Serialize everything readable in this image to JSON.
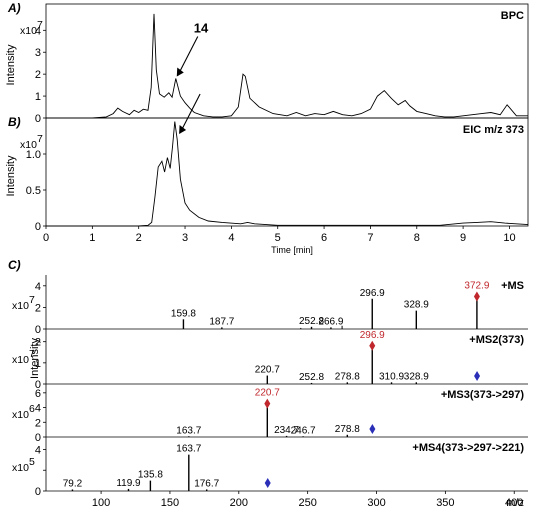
{
  "chart_data": [
    {
      "type": "line",
      "panel_label": "A)",
      "trace_label": "BPC",
      "exponent_label": "x10 7",
      "ylabel": "Intensity",
      "yticks": [
        0,
        1,
        2,
        3,
        4
      ],
      "ylim": [
        0,
        5.2
      ],
      "xlim": [
        0,
        10.4
      ],
      "annotation": "14",
      "annotation_points_to": [
        2.8,
        1.8
      ],
      "x": [
        0,
        1.0,
        1.3,
        1.45,
        1.55,
        1.65,
        1.8,
        1.9,
        2.0,
        2.1,
        2.2,
        2.27,
        2.33,
        2.38,
        2.45,
        2.55,
        2.65,
        2.72,
        2.8,
        2.9,
        3.0,
        3.1,
        3.2,
        3.4,
        3.6,
        3.8,
        4.0,
        4.15,
        4.25,
        4.3,
        4.4,
        4.6,
        4.9,
        5.2,
        5.4,
        5.6,
        5.8,
        6.0,
        6.2,
        6.4,
        6.6,
        6.8,
        7.0,
        7.15,
        7.3,
        7.45,
        7.6,
        7.75,
        7.85,
        8.0,
        8.2,
        8.4,
        8.6,
        8.8,
        9.0,
        9.2,
        9.4,
        9.6,
        9.8,
        9.95,
        10.05,
        10.15,
        10.4
      ],
      "y": [
        0,
        0,
        0.05,
        0.2,
        0.45,
        0.3,
        0.15,
        0.35,
        0.25,
        0.4,
        0.35,
        1.4,
        4.75,
        2.2,
        1.1,
        0.95,
        1.15,
        0.95,
        1.8,
        1.0,
        0.7,
        0.45,
        0.25,
        0.1,
        0.05,
        0.05,
        0.1,
        0.5,
        2.0,
        1.9,
        0.9,
        0.5,
        0.2,
        0.1,
        0.25,
        0.1,
        0.2,
        0.15,
        0.3,
        0.15,
        0.1,
        0.2,
        0.4,
        1.0,
        1.25,
        0.9,
        0.6,
        0.8,
        0.55,
        0.3,
        0.2,
        0.1,
        0.05,
        0.05,
        0.1,
        0.15,
        0.2,
        0.25,
        0.15,
        0.6,
        0.35,
        0.1,
        0.1
      ],
      "grid": false
    },
    {
      "type": "line",
      "panel_label": "B)",
      "trace_label": "EIC m/z 373",
      "exponent_label": "x10 7",
      "ylabel": "Intensity",
      "yticks": [
        0,
        0.5,
        1.0
      ],
      "ytick_labels": [
        "0",
        "0.5",
        "1.0"
      ],
      "ylim": [
        0,
        1.5
      ],
      "xlim": [
        0,
        10.4
      ],
      "xticks": [
        0,
        1,
        2,
        3,
        4,
        5,
        6,
        7,
        8,
        9,
        10
      ],
      "xlabel": "Time [min]",
      "annotation_points_to": [
        2.85,
        1.25
      ],
      "x": [
        0,
        2.0,
        2.2,
        2.28,
        2.35,
        2.42,
        2.5,
        2.56,
        2.62,
        2.68,
        2.73,
        2.78,
        2.83,
        2.9,
        3.0,
        3.1,
        3.3,
        3.5,
        3.8,
        4.2,
        4.35,
        4.5,
        5.0,
        8.5,
        9.0,
        9.3,
        9.6,
        9.9,
        10.4
      ],
      "y": [
        0,
        0,
        0.01,
        0.05,
        0.4,
        0.82,
        0.9,
        0.75,
        0.95,
        0.8,
        1.1,
        1.45,
        1.2,
        0.65,
        0.32,
        0.22,
        0.12,
        0.07,
        0.05,
        0.03,
        0.05,
        0.03,
        0.01,
        0.01,
        0.04,
        0.05,
        0.06,
        0.04,
        0.02
      ],
      "grid": false
    },
    {
      "type": "bar",
      "panel_label": "C)",
      "trace_label": "+MS",
      "exponent_label": "x10 7",
      "yticks": [
        0,
        2,
        4
      ],
      "ylim": [
        0,
        5.0
      ],
      "xlim": [
        60,
        410
      ],
      "peaks_mz": [
        159.8,
        187.7,
        252.8,
        266.9,
        296.9,
        328.9,
        372.9
      ],
      "peaks_intensity": [
        0.9,
        0.15,
        0.2,
        0.15,
        2.8,
        1.7,
        3.2
      ],
      "peak_labels": [
        "159.8",
        "187.7",
        "252.8",
        "266.9",
        "296.9",
        "328.9",
        "372.9"
      ],
      "precursor_mz": 372.9,
      "precursor_label": "372.9",
      "unlabeled_peaks_mz": [
        245,
        275
      ],
      "unlabeled_peaks_intensity": [
        0.1,
        0.3
      ]
    },
    {
      "type": "bar",
      "trace_label": "+MS2(373)",
      "exponent_label": "x10 7",
      "ylabel": "Intensity",
      "yticks": [
        0,
        1,
        2
      ],
      "ylim": [
        0,
        2.6
      ],
      "xlim": [
        60,
        410
      ],
      "peaks_mz": [
        220.7,
        252.8,
        278.8,
        296.9,
        310.9,
        328.9
      ],
      "peaks_intensity": [
        0.4,
        0.05,
        0.08,
        1.9,
        0.08,
        0.08
      ],
      "peak_labels": [
        "220.7",
        "252.8",
        "278.8",
        "296.9",
        "310.9",
        "328.9"
      ],
      "precursor_mz": 296.9,
      "precursor_label": "296.9",
      "isolated_mz": 373
    },
    {
      "type": "bar",
      "trace_label": "+MS3(373->297)",
      "exponent_label": "x10 6",
      "yticks": [
        0,
        2,
        4,
        6
      ],
      "ylim": [
        0,
        7.2
      ],
      "xlim": [
        60,
        410
      ],
      "peaks_mz": [
        163.7,
        220.7,
        234.7,
        246.7,
        278.8
      ],
      "peaks_intensity": [
        0.1,
        4.8,
        0.15,
        0.1,
        0.3
      ],
      "peak_labels": [
        "163.7",
        "220.7",
        "234.7",
        "246.7",
        "278.8"
      ],
      "precursor_mz": 220.7,
      "precursor_label": "220.7",
      "isolated_mz": 297
    },
    {
      "type": "bar",
      "trace_label": "+MS4(373->297->221)",
      "exponent_label": "x10 5",
      "yticks": [
        0,
        2,
        4
      ],
      "ytick_labels": [
        "0",
        "",
        "4"
      ],
      "ylim": [
        0,
        5.2
      ],
      "xlim": [
        60,
        410
      ],
      "peaks_mz": [
        79.2,
        119.9,
        135.8,
        163.7,
        176.7
      ],
      "peaks_intensity": [
        0.15,
        0.2,
        1.0,
        3.5,
        0.15
      ],
      "peak_labels": [
        "79.2",
        "119.9",
        "135.8",
        "163.7",
        "176.7"
      ],
      "isolated_mz": 221,
      "xticks": [
        100,
        150,
        200,
        250,
        300,
        350,
        400
      ],
      "xlabel": "m/z"
    }
  ]
}
